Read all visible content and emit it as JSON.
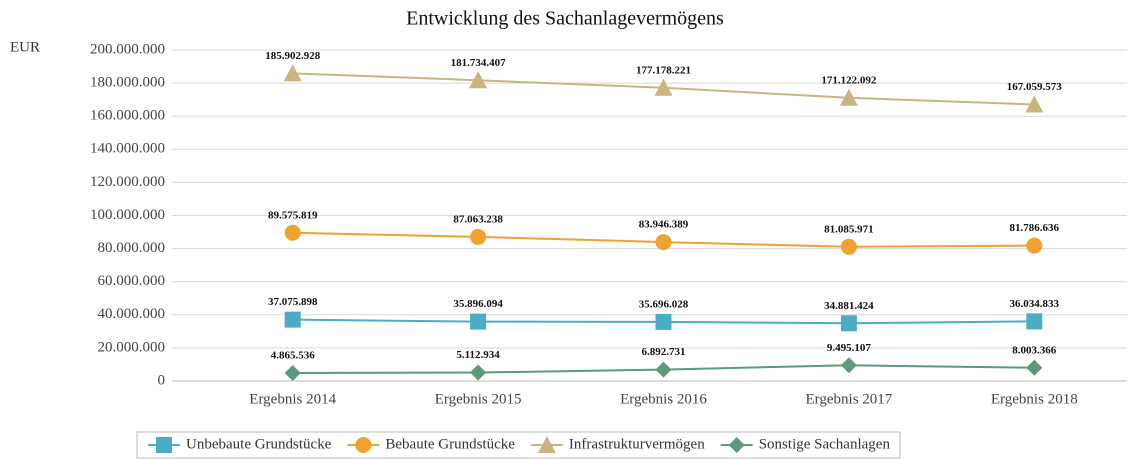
{
  "chart_data": {
    "type": "line",
    "title": "Entwicklung des Sachanlagevermögens",
    "y_label": "EUR",
    "categories": [
      "Ergebnis 2014",
      "Ergebnis 2015",
      "Ergebnis 2016",
      "Ergebnis 2017",
      "Ergebnis 2018"
    ],
    "series": [
      {
        "name": "Unbebaute Grundstücke",
        "color": "#4bacc6",
        "marker": "square",
        "values": [
          37075898,
          35896094,
          35696028,
          34881424,
          36034833
        ],
        "value_labels": [
          "37.075.898",
          "35.896.094",
          "35.696.028",
          "34.881.424",
          "36.034.833"
        ]
      },
      {
        "name": "Bebaute Grundstücke",
        "color": "#f0a22e",
        "marker": "circle",
        "values": [
          89575819,
          87063238,
          83946389,
          81085971,
          81786636
        ],
        "value_labels": [
          "89.575.819",
          "87.063.238",
          "83.946.389",
          "81.085.971",
          "81.786.636"
        ]
      },
      {
        "name": "Infrastrukturvermögen",
        "color": "#c9b57f",
        "marker": "triangle",
        "values": [
          185902928,
          181734407,
          177178221,
          171122092,
          167059573
        ],
        "value_labels": [
          "185.902.928",
          "181.734.407",
          "177.178.221",
          "171.122.092",
          "167.059.573"
        ]
      },
      {
        "name": "Sonstige Sachanlagen",
        "color": "#5b9a7a",
        "marker": "diamond",
        "values": [
          4865536,
          5112934,
          6892731,
          9495107,
          8003366
        ],
        "value_labels": [
          "4.865.536",
          "5.112.934",
          "6.892.731",
          "9.495.107",
          "8.003.366"
        ]
      }
    ],
    "ylim": [
      0,
      200000000
    ],
    "yticks": [
      0,
      {
        "value": 20000000,
        "label": "20.000.000"
      },
      {
        "value": 40000000,
        "label": "40.000.000"
      },
      {
        "value": 60000000,
        "label": "60.000.000"
      },
      {
        "value": 80000000,
        "label": "80.000.000"
      },
      {
        "value": 100000000,
        "label": "100.000.000"
      },
      {
        "value": 120000000,
        "label": "120.000.000"
      },
      {
        "value": 140000000,
        "label": "140.000.000"
      },
      {
        "value": 160000000,
        "label": "160.000.000"
      },
      {
        "value": 180000000,
        "label": "180.000.000"
      },
      {
        "value": 200000000,
        "label": "200.000.000"
      }
    ],
    "grid": true,
    "legend": "bottom"
  }
}
